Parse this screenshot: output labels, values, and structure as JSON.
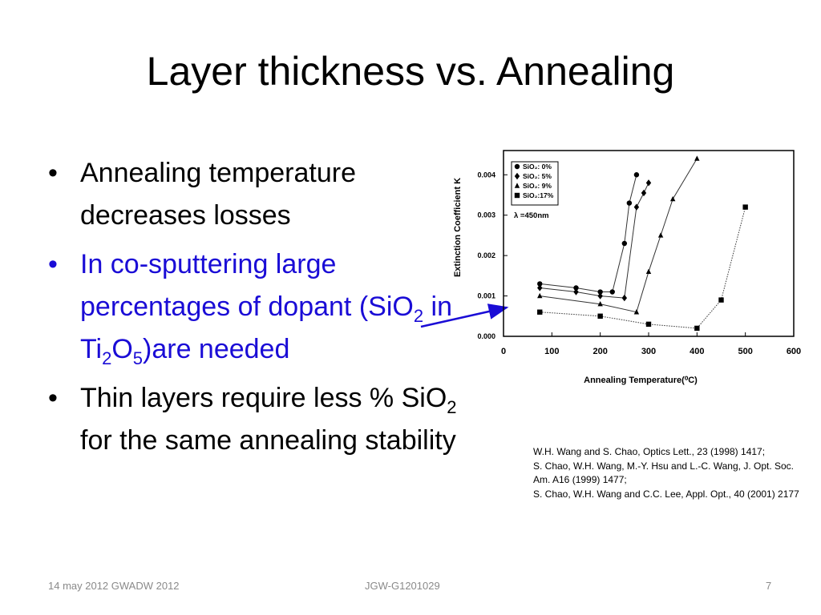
{
  "slide": {
    "title": "Layer thickness vs. Annealing",
    "bullets": [
      {
        "text": "Annealing temperature decreases losses"
      },
      {
        "pre": "In co-sputtering large percentages of dopant (SiO",
        "sub1": "2",
        "mid1": " in Ti",
        "sub2": "2",
        "mid2": "O",
        "sub3": "5",
        "post": ")are needed"
      },
      {
        "pre": "Thin layers require less % SiO",
        "sub1": "2",
        "post": " for the same annealing stability"
      }
    ],
    "bullet_glyph": "•",
    "text_color_blue": "#1a0cd6",
    "references": [
      "W.H. Wang and S. Chao, Optics Lett., 23 (1998) 1417;",
      "S. Chao, W.H. Wang, M.-Y. Hsu and L.-C. Wang, J. Opt. Soc. Am. A16 (1999) 1477;",
      "S. Chao, W.H. Wang and C.C. Lee, Appl. Opt., 40 (2001) 2177"
    ],
    "footer": {
      "left": "14 may 2012 GWADW 2012",
      "center": "JGW-G1201029",
      "right": "7"
    }
  },
  "chart_data": {
    "type": "scatter",
    "title": "",
    "xlabel": "Annealing Temperature(⁰C)",
    "ylabel": "Extinction Coefficient K",
    "xlim": [
      0,
      600
    ],
    "ylim": [
      0,
      0.0046
    ],
    "xticks": [
      0,
      100,
      200,
      300,
      400,
      500,
      600
    ],
    "yticks": [
      0.0,
      0.001,
      0.002,
      0.003,
      0.004
    ],
    "ytick_labels": [
      "0.000",
      "0.001",
      "0.002",
      "0.003",
      "0.004"
    ],
    "legend_position": "top-left",
    "legend_note": "λ =450nm",
    "series": [
      {
        "name": "SiO₂: 0%",
        "marker": "circle",
        "x": [
          75,
          150,
          200,
          225,
          250,
          260,
          275
        ],
        "y": [
          0.0013,
          0.0012,
          0.0011,
          0.0011,
          0.0023,
          0.0033,
          0.004
        ]
      },
      {
        "name": "SiO₂: 5%",
        "marker": "diamond",
        "x": [
          75,
          150,
          200,
          250,
          275,
          290,
          300
        ],
        "y": [
          0.0012,
          0.0011,
          0.001,
          0.00095,
          0.0032,
          0.00355,
          0.0038
        ]
      },
      {
        "name": "SiO₂: 9%",
        "marker": "triangle",
        "x": [
          75,
          200,
          275,
          300,
          325,
          350,
          400
        ],
        "y": [
          0.001,
          0.0008,
          0.0006,
          0.0016,
          0.0025,
          0.0034,
          0.0044
        ]
      },
      {
        "name": "SiO₂:17%",
        "marker": "square",
        "x": [
          75,
          200,
          300,
          400,
          450,
          500
        ],
        "y": [
          0.0006,
          0.0005,
          0.0003,
          0.0002,
          0.0009,
          0.0032
        ]
      }
    ]
  }
}
